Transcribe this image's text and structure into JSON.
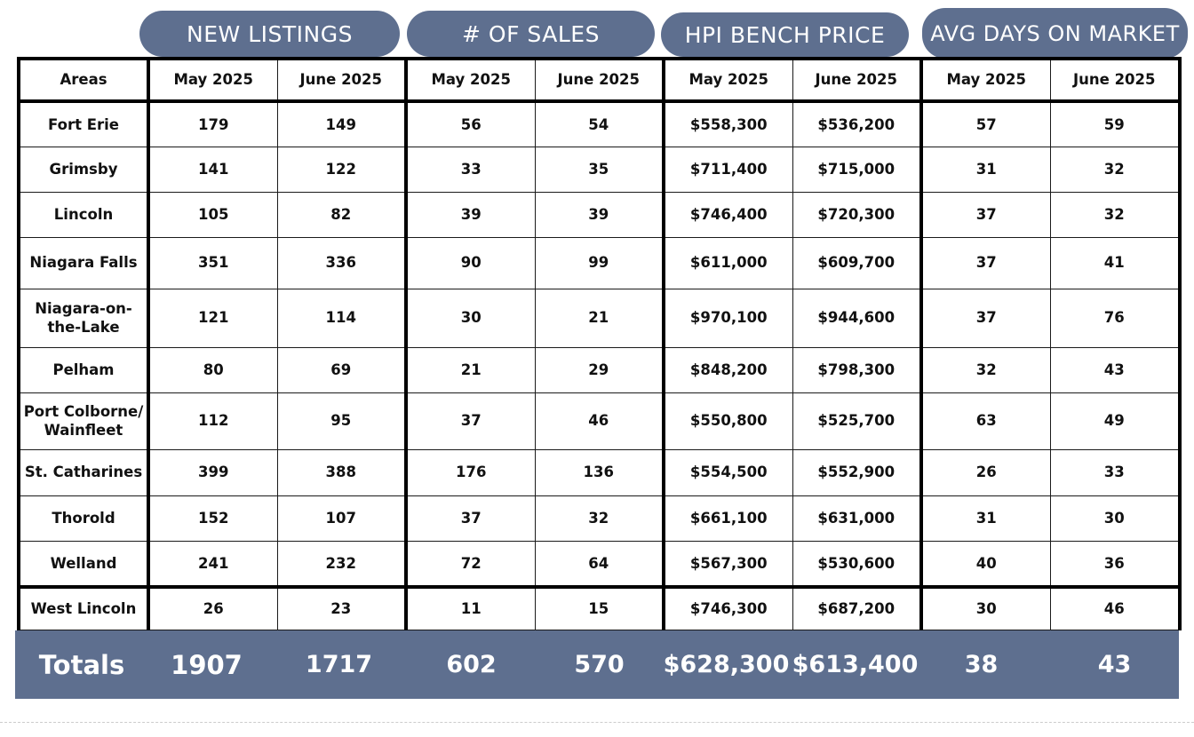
{
  "groups": [
    "NEW LISTINGS",
    "# OF SALES",
    "HPI BENCH PRICE",
    "AVG DAYS ON MARKET"
  ],
  "header": {
    "areas": "Areas",
    "columns": [
      "May 2025",
      "June 2025",
      "May 2025",
      "June 2025",
      "May 2025",
      "June 2025",
      "May 2025",
      "June 2025"
    ]
  },
  "rows": [
    {
      "area": "Fort Erie",
      "values": [
        "179",
        "149",
        "56",
        "54",
        "$558,300",
        "$536,200",
        "57",
        "59"
      ]
    },
    {
      "area": "Grimsby",
      "values": [
        "141",
        "122",
        "33",
        "35",
        "$711,400",
        "$715,000",
        "31",
        "32"
      ]
    },
    {
      "area": "Lincoln",
      "values": [
        "105",
        "82",
        "39",
        "39",
        "$746,400",
        "$720,300",
        "37",
        "32"
      ]
    },
    {
      "area": "Niagara Falls",
      "values": [
        "351",
        "336",
        "90",
        "99",
        "$611,000",
        "$609,700",
        "37",
        "41"
      ]
    },
    {
      "area": "Niagara-on-the-Lake",
      "area_lines": [
        "Niagara-on-",
        "the-Lake"
      ],
      "values": [
        "121",
        "114",
        "30",
        "21",
        "$970,100",
        "$944,600",
        "37",
        "76"
      ]
    },
    {
      "area": "Pelham",
      "values": [
        "80",
        "69",
        "21",
        "29",
        "$848,200",
        "$798,300",
        "32",
        "43"
      ]
    },
    {
      "area": "Port Colborne/Wainfleet",
      "area_lines": [
        "Port Colborne/",
        "Wainfleet"
      ],
      "values": [
        "112",
        "95",
        "37",
        "46",
        "$550,800",
        "$525,700",
        "63",
        "49"
      ]
    },
    {
      "area": "St. Catharines",
      "values": [
        "399",
        "388",
        "176",
        "136",
        "$554,500",
        "$552,900",
        "26",
        "33"
      ]
    },
    {
      "area": "Thorold",
      "values": [
        "152",
        "107",
        "37",
        "32",
        "$661,100",
        "$631,000",
        "31",
        "30"
      ]
    },
    {
      "area": "Welland",
      "values": [
        "241",
        "232",
        "72",
        "64",
        "$567,300",
        "$530,600",
        "40",
        "36"
      ]
    },
    {
      "area": "West Lincoln",
      "values": [
        "26",
        "23",
        "11",
        "15",
        "$746,300",
        "$687,200",
        "30",
        "46"
      ]
    }
  ],
  "totals": {
    "label": "Totals",
    "values": [
      "1907",
      "1717",
      "602",
      "570",
      "$628,300",
      "$613,400",
      "38",
      "43"
    ]
  },
  "colors": {
    "accent": "#5e6f8f",
    "border": "#000000",
    "text": "#111111"
  }
}
